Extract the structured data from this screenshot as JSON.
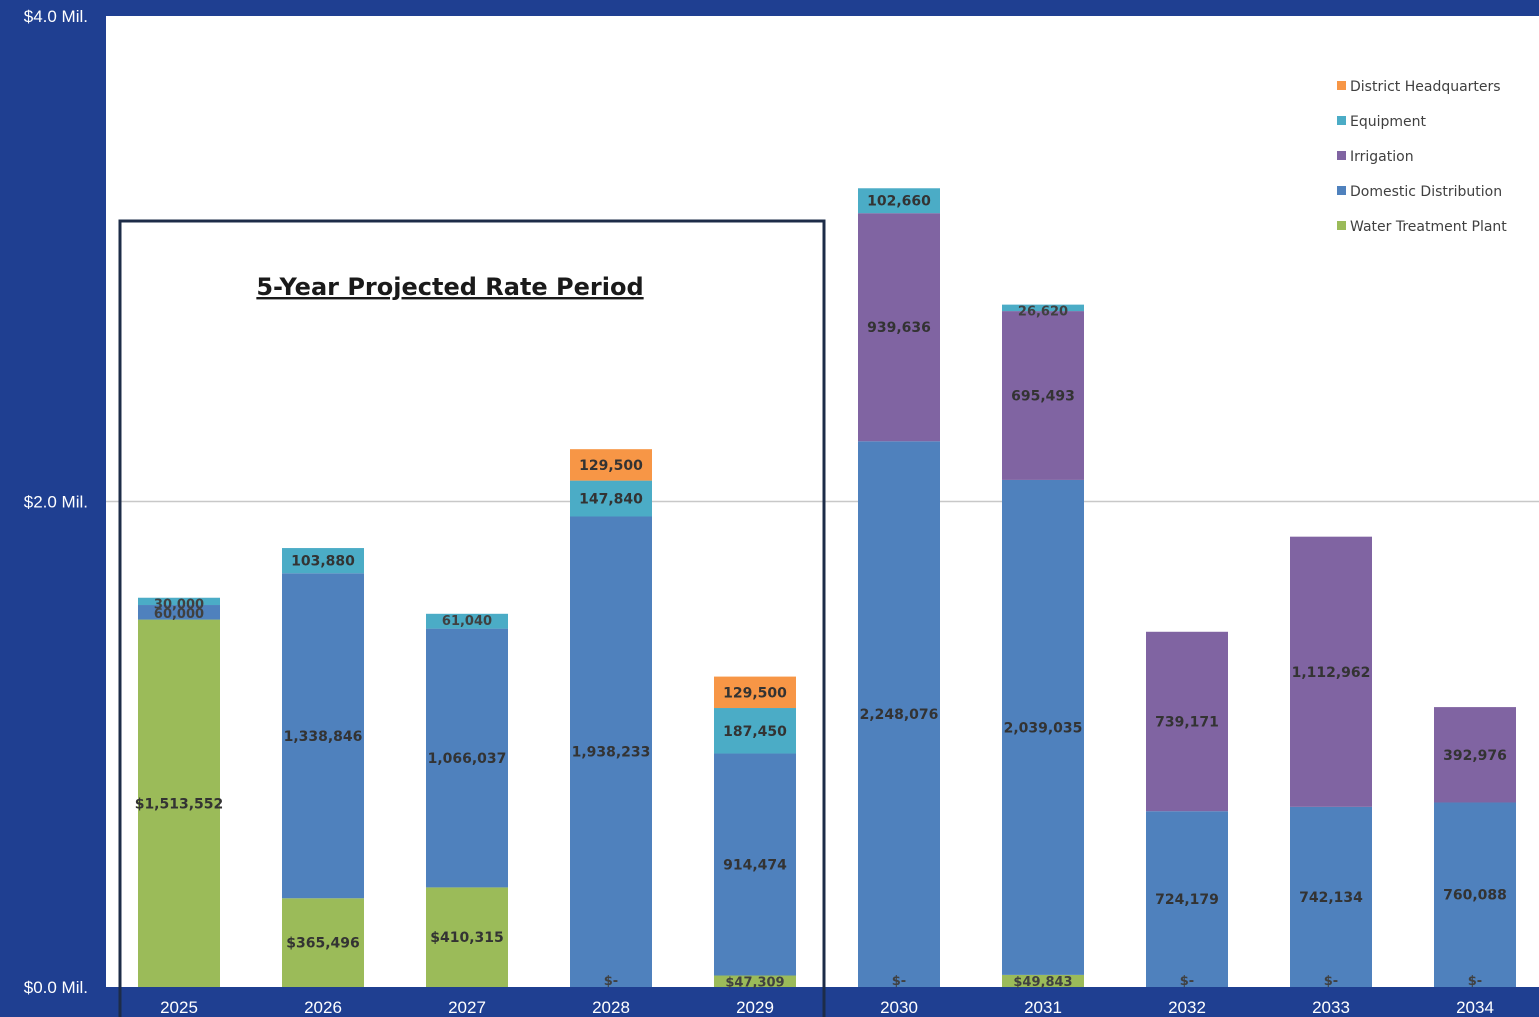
{
  "chart_data": {
    "type": "bar",
    "stacked": true,
    "categories": [
      "2025",
      "2026",
      "2027",
      "2028",
      "2029",
      "2030",
      "2031",
      "2032",
      "2033",
      "2034"
    ],
    "y_tick_labels": [
      "$0.0 Mil.",
      "$2.0 Mil.",
      "$4.0 Mil."
    ],
    "y_tick_values": [
      0,
      2000000,
      4000000
    ],
    "ylim": [
      0,
      4000000
    ],
    "grid": true,
    "legend_position": "top-right",
    "annotation": "5-Year Projected Rate Period",
    "series": [
      {
        "name": "Water Treatment Plant",
        "color": "#9bbb59",
        "values": [
          1513552,
          365496,
          410315,
          0,
          47309,
          0,
          49843,
          0,
          0,
          0
        ],
        "labels": [
          "$1,513,552",
          "$365,496",
          "$410,315",
          "$-",
          "$47,309",
          "$-",
          "$49,843",
          "$-",
          "$-",
          "$-"
        ]
      },
      {
        "name": "Domestic Distribution",
        "color": "#4f81bd",
        "values": [
          60000,
          1338846,
          1066037,
          1938233,
          914474,
          2248076,
          2039035,
          724179,
          742134,
          760088
        ],
        "labels": [
          "60,000",
          "1,338,846",
          "1,066,037",
          "1,938,233",
          "914,474",
          "2,248,076",
          "2,039,035",
          "724,179",
          "742,134",
          "760,088"
        ]
      },
      {
        "name": "Irrigation",
        "color": "#8064a2",
        "values": [
          0,
          0,
          0,
          0,
          0,
          939636,
          695493,
          739171,
          1112962,
          392976
        ],
        "labels": [
          "",
          "",
          "",
          "",
          "",
          "939,636",
          "695,493",
          "739,171",
          "1,112,962",
          "392,976"
        ]
      },
      {
        "name": "Equipment",
        "color": "#4bacc6",
        "values": [
          30000,
          103880,
          61040,
          147840,
          187450,
          102660,
          26620,
          0,
          0,
          0
        ],
        "labels": [
          "30,000",
          "103,880",
          "61,040",
          "147,840",
          "187,450",
          "102,660",
          "26,620",
          "",
          "",
          ""
        ]
      },
      {
        "name": "District Headquarters",
        "color": "#f79646",
        "values": [
          0,
          0,
          0,
          129500,
          129500,
          0,
          0,
          0,
          0,
          0
        ],
        "labels": [
          "",
          "",
          "",
          "129,500",
          "129,500",
          "",
          "",
          "",
          "",
          ""
        ]
      }
    ]
  }
}
